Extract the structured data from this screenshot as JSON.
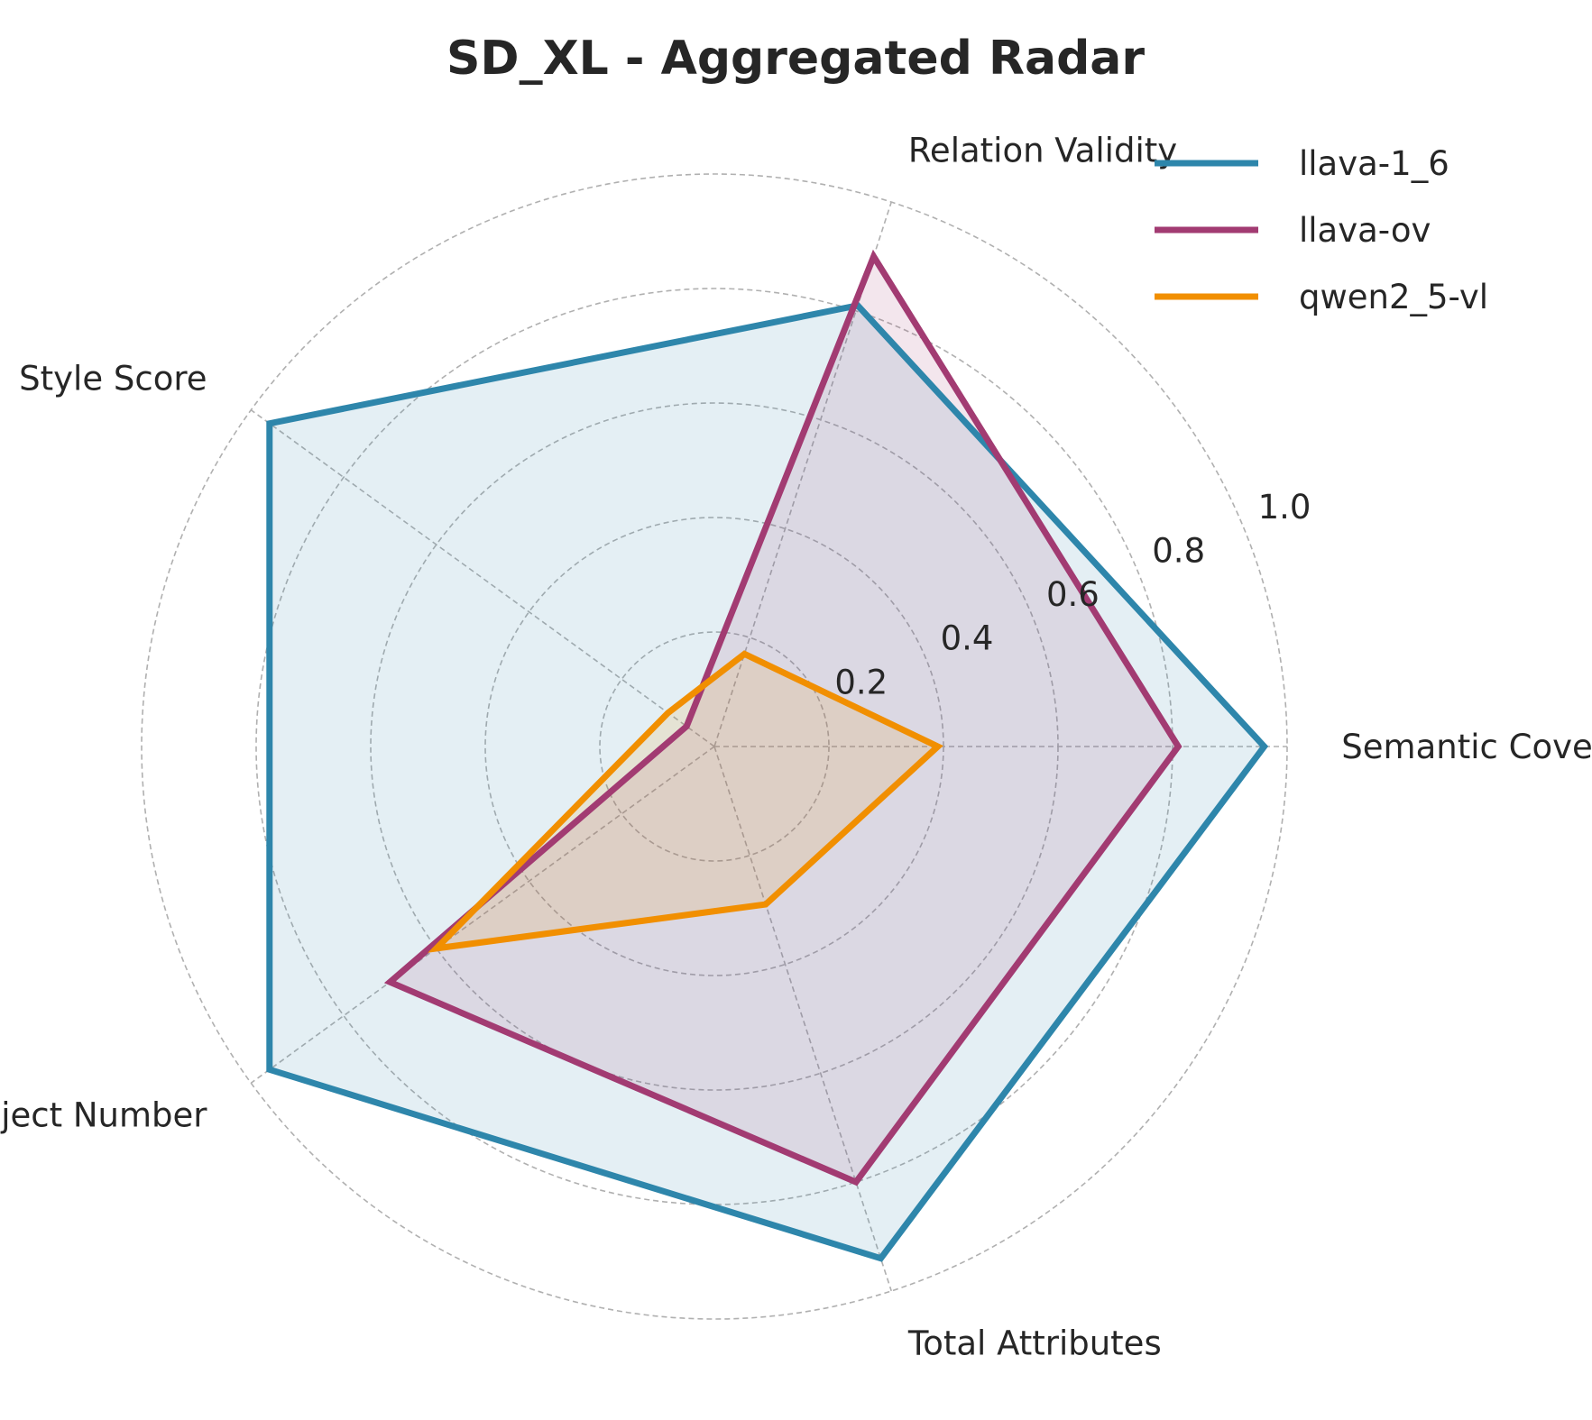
{
  "chart_data": {
    "type": "radar",
    "title": "SD_XL - Aggregated Radar",
    "axes": [
      "Semantic Coverage",
      "Relation Validity",
      "Style Score",
      "Object Number",
      "Total Attributes"
    ],
    "rlim": [
      0,
      1.0
    ],
    "rticks": [
      0.2,
      0.4,
      0.6,
      0.8,
      1.0
    ],
    "rtick_labels": [
      "0.2",
      "0.4",
      "0.6",
      "0.8",
      "1.0"
    ],
    "grid": true,
    "legend_position": "top-right",
    "series": [
      {
        "name": "llava-1_6",
        "color": "#2e86ab",
        "values": [
          0.96,
          0.81,
          0.96,
          0.96,
          0.94
        ]
      },
      {
        "name": "llava-ov",
        "color": "#a23b72",
        "values": [
          0.81,
          0.9,
          0.06,
          0.7,
          0.8
        ]
      },
      {
        "name": "qwen2_5-vl",
        "color": "#f18f01",
        "values": [
          0.39,
          0.17,
          0.1,
          0.6,
          0.29
        ]
      }
    ]
  }
}
